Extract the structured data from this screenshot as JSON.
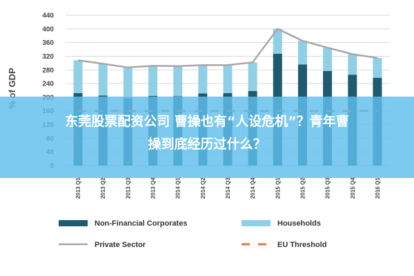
{
  "chart_data": {
    "type": "bar",
    "stacked": true,
    "ylabel": "% of GDP",
    "ylim": [
      0,
      440
    ],
    "yticks": [
      0,
      40,
      80,
      120,
      160,
      200,
      240,
      280,
      320,
      360,
      400,
      440
    ],
    "categories": [
      "2013 Q1",
      "2013 Q2",
      "2013 Q3",
      "2013 Q4",
      "2014 Q1",
      "2014 Q2",
      "2014 Q3",
      "2014 Q4",
      "2015 Q1",
      "2015 Q2",
      "2015 Q3",
      "2015 Q4",
      "2016 Q1"
    ],
    "series": [
      {
        "name": "Non-Financial Corporates",
        "kind": "bar",
        "color": "#1f5a6e",
        "values": [
          212,
          205,
          197,
          204,
          203,
          211,
          212,
          218,
          327,
          296,
          277,
          266,
          257
        ]
      },
      {
        "name": "Households",
        "kind": "bar",
        "color": "#8fd0e6",
        "values": [
          96,
          93,
          90,
          88,
          88,
          83,
          82,
          84,
          73,
          69,
          68,
          60,
          58
        ]
      },
      {
        "name": "Private Sector",
        "kind": "line",
        "color": "#a6a6a6",
        "values": [
          308,
          298,
          287,
          292,
          291,
          294,
          294,
          302,
          400,
          365,
          345,
          326,
          315
        ]
      },
      {
        "name": "EU Threshold",
        "kind": "line",
        "style": "dashed",
        "color": "#e8703a",
        "values": [
          160,
          160,
          160,
          160,
          160,
          160,
          160,
          160,
          160,
          160,
          160,
          160,
          160
        ]
      }
    ],
    "legend_position": "bottom",
    "grid": true
  },
  "overlay": {
    "lines": [
      "东莞股票配资公司 曹操也有“人设危机”？青年曹",
      "操到底经历过什么？"
    ]
  }
}
